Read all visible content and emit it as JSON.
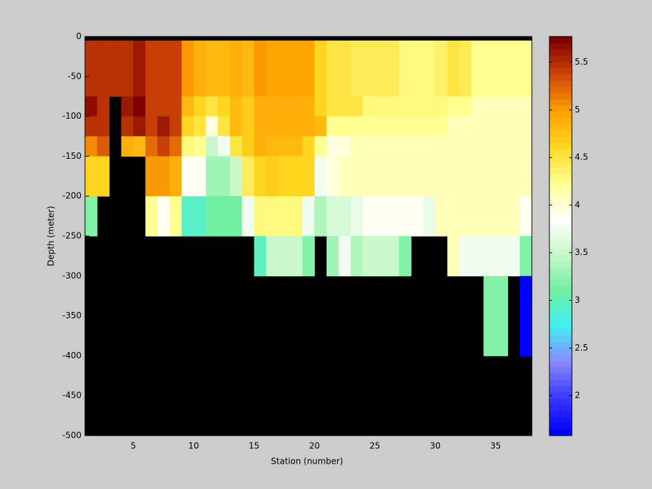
{
  "chart_data": {
    "type": "heatmap",
    "xlabel": "Station (number)",
    "ylabel": "Depth (meter)",
    "x_edges": [
      1,
      2,
      3,
      4,
      5,
      6,
      7,
      8,
      9,
      10,
      11,
      12,
      13,
      14,
      15,
      16,
      17,
      18,
      19,
      20,
      21,
      22,
      23,
      24,
      25,
      26,
      27,
      28,
      29,
      30,
      31,
      32,
      33,
      34,
      35,
      36,
      37,
      38
    ],
    "y_edges": [
      0,
      -5,
      -75,
      -100,
      -125,
      -150,
      -200,
      -250,
      -300,
      -400,
      -500
    ],
    "z": [
      [
        null,
        null,
        null,
        null,
        null,
        null,
        null,
        null,
        null,
        null,
        null,
        null,
        null,
        null,
        null,
        null,
        null,
        null,
        null,
        null,
        null,
        null,
        null,
        null,
        null,
        null,
        null,
        null,
        null,
        null,
        null,
        null,
        null,
        null,
        null,
        null,
        null
      ],
      [
        5.45,
        5.5,
        5.45,
        5.5,
        5.6,
        5.4,
        5.4,
        5.4,
        5.0,
        4.9,
        4.8,
        4.85,
        4.9,
        4.85,
        5.0,
        4.95,
        4.95,
        4.95,
        4.95,
        4.6,
        4.5,
        4.5,
        4.4,
        4.4,
        4.4,
        4.4,
        4.3,
        4.3,
        4.3,
        4.35,
        4.5,
        4.4,
        4.2,
        4.2,
        4.2,
        4.2,
        4.2
      ],
      [
        5.7,
        5.5,
        null,
        5.6,
        5.75,
        5.4,
        5.4,
        5.4,
        4.8,
        4.6,
        4.5,
        4.6,
        4.8,
        4.7,
        4.9,
        4.9,
        4.9,
        4.9,
        4.9,
        4.6,
        4.5,
        4.5,
        4.5,
        4.3,
        4.3,
        4.3,
        4.3,
        4.3,
        4.3,
        4.3,
        4.2,
        4.2,
        4.1,
        4.1,
        4.1,
        4.1,
        4.1
      ],
      [
        5.5,
        5.5,
        null,
        5.5,
        5.6,
        5.4,
        5.6,
        5.4,
        4.6,
        4.5,
        4.0,
        4.5,
        4.8,
        4.7,
        4.9,
        4.9,
        4.9,
        4.9,
        4.9,
        4.8,
        4.2,
        4.2,
        4.2,
        4.2,
        4.2,
        4.2,
        4.2,
        4.2,
        4.2,
        4.2,
        4.1,
        4.1,
        4.1,
        4.1,
        4.1,
        4.1,
        4.1
      ],
      [
        5.1,
        5.3,
        null,
        4.9,
        4.8,
        5.2,
        5.4,
        5.2,
        4.3,
        4.2,
        3.5,
        3.8,
        4.5,
        4.7,
        4.9,
        4.8,
        4.8,
        4.8,
        4.6,
        4.2,
        4.0,
        4.0,
        4.1,
        4.1,
        4.1,
        4.1,
        4.1,
        4.1,
        4.1,
        4.1,
        4.1,
        4.1,
        4.1,
        4.1,
        4.1,
        4.1,
        4.1
      ],
      [
        4.6,
        4.6,
        null,
        null,
        null,
        5.0,
        5.0,
        4.9,
        3.9,
        3.9,
        3.3,
        3.3,
        3.5,
        4.4,
        4.6,
        4.7,
        4.6,
        4.6,
        4.6,
        3.8,
        4.0,
        4.1,
        4.1,
        4.1,
        4.1,
        4.1,
        4.1,
        4.1,
        4.1,
        4.1,
        4.1,
        4.1,
        4.1,
        4.1,
        4.1,
        4.1,
        4.1
      ],
      [
        3.2,
        null,
        null,
        null,
        null,
        4.2,
        3.9,
        4.2,
        2.9,
        2.9,
        3.1,
        3.1,
        3.1,
        3.8,
        4.3,
        4.3,
        4.3,
        4.3,
        3.8,
        3.4,
        3.6,
        3.6,
        3.7,
        3.9,
        3.9,
        3.9,
        3.9,
        3.9,
        3.7,
        4.1,
        4.1,
        4.1,
        4.1,
        4.1,
        4.1,
        4.1,
        3.9
      ],
      [
        null,
        null,
        null,
        null,
        null,
        null,
        null,
        null,
        null,
        null,
        null,
        null,
        null,
        null,
        3.0,
        3.5,
        3.5,
        3.5,
        3.2,
        null,
        3.3,
        3.8,
        3.4,
        3.5,
        3.5,
        3.5,
        3.2,
        null,
        null,
        null,
        4.1,
        3.8,
        3.8,
        3.8,
        3.8,
        3.8,
        3.2
      ],
      [
        null,
        null,
        null,
        null,
        null,
        null,
        null,
        null,
        null,
        null,
        null,
        null,
        null,
        null,
        null,
        null,
        null,
        null,
        null,
        null,
        null,
        null,
        null,
        null,
        null,
        null,
        null,
        null,
        null,
        null,
        null,
        null,
        null,
        3.2,
        3.2,
        null,
        1.6
      ],
      [
        null,
        null,
        null,
        null,
        null,
        null,
        null,
        null,
        null,
        null,
        null,
        null,
        null,
        null,
        null,
        null,
        null,
        null,
        null,
        null,
        null,
        null,
        null,
        null,
        null,
        null,
        null,
        null,
        null,
        null,
        null,
        null,
        null,
        null,
        null,
        null,
        null
      ]
    ],
    "xlim": [
      1,
      38
    ],
    "ylim": [
      -500,
      0
    ],
    "xticks": [
      5,
      10,
      15,
      20,
      25,
      30,
      35
    ],
    "yticks": [
      -500,
      -450,
      -400,
      -350,
      -300,
      -250,
      -200,
      -150,
      -100,
      -50,
      0
    ],
    "clim": [
      1.58,
      5.77
    ],
    "cticks": [
      2,
      2.5,
      3,
      3.5,
      4,
      4.5,
      5,
      5.5
    ],
    "colormap": [
      "#0000ff",
      "#3a3aff",
      "#8a8aff",
      "#40f0f0",
      "#70f0a0",
      "#c8f8c8",
      "#ffffff",
      "#ffff90",
      "#ffd820",
      "#ffa000",
      "#d04808",
      "#800000"
    ],
    "colormap_levels": 64,
    "missing_color": "#000000"
  }
}
